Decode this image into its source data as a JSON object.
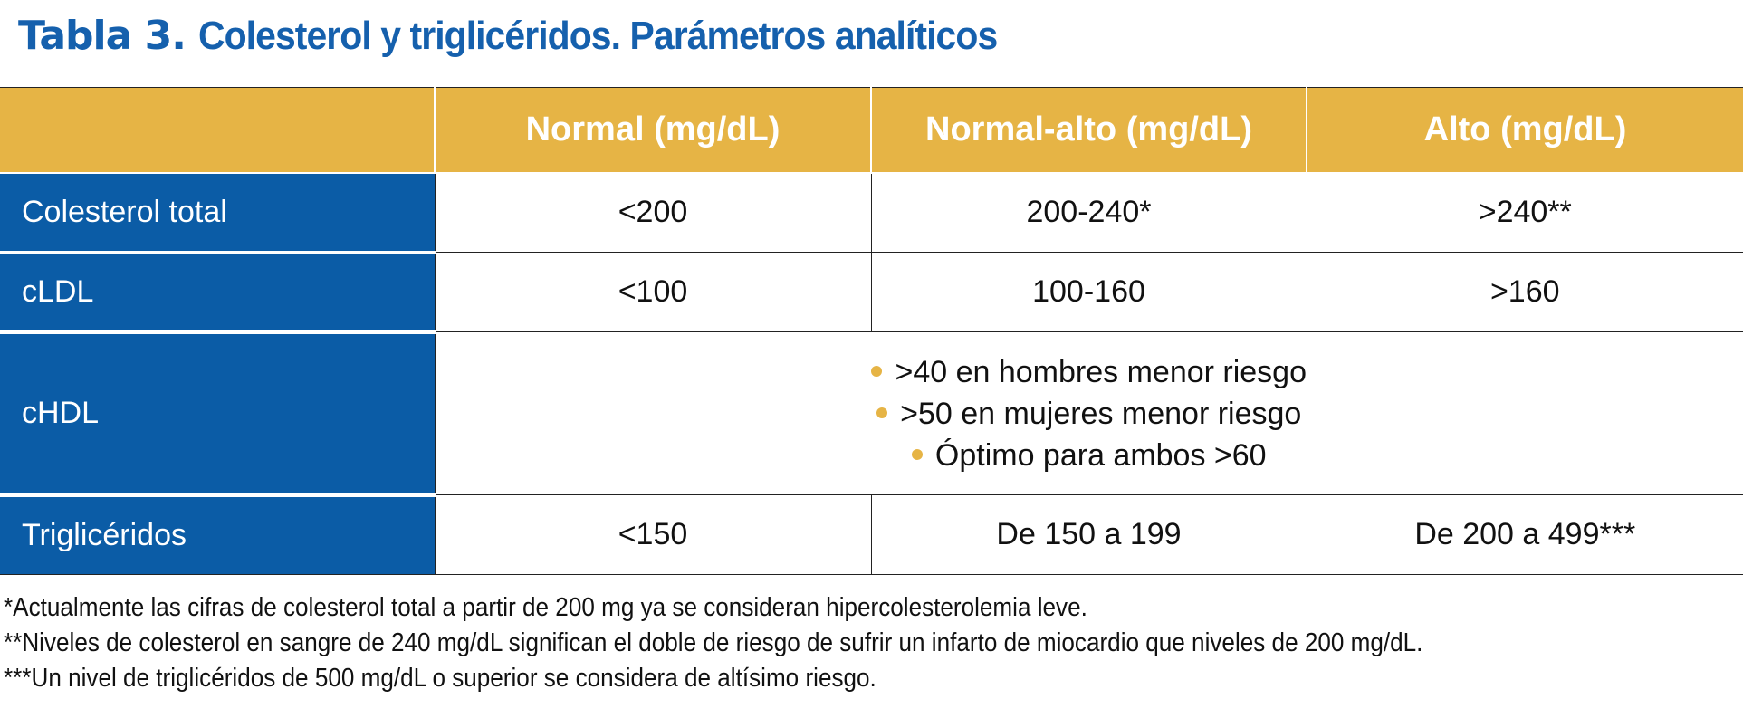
{
  "title": {
    "label": "Tabla 3.",
    "text": "Colesterol y triglicéridos. Parámetros analíticos"
  },
  "colors": {
    "header_bg": "#e6b445",
    "row_label_bg": "#0b5ca6",
    "title": "#1560ad",
    "bullet": "#e6b445"
  },
  "table": {
    "headers": [
      "",
      "Normal (mg/dL)",
      "Normal-alto (mg/dL)",
      "Alto (mg/dL)"
    ],
    "rows": [
      {
        "label": "Colesterol total",
        "normal": "<200",
        "normal_alto": "200-240*",
        "alto": ">240**"
      },
      {
        "label": "cLDL",
        "normal": "<100",
        "normal_alto": "100-160",
        "alto": ">160"
      },
      {
        "label": "cHDL",
        "bullets": [
          ">40 en hombres menor riesgo",
          ">50 en mujeres menor riesgo",
          "Óptimo para ambos >60"
        ]
      },
      {
        "label": "Triglicéridos",
        "normal": "<150",
        "normal_alto": "De 150 a 199",
        "alto": "De 200 a 499***"
      }
    ]
  },
  "footnotes": [
    "*Actualmente las cifras de colesterol total a partir de 200 mg ya se consideran hipercolesterolemia leve.",
    "**Niveles de colesterol en sangre de 240 mg/dL significan el doble de riesgo de sufrir un infarto de miocardio que niveles de 200 mg/dL.",
    "***Un nivel de triglicéridos de 500 mg/dL o superior se considera de altísimo riesgo."
  ]
}
